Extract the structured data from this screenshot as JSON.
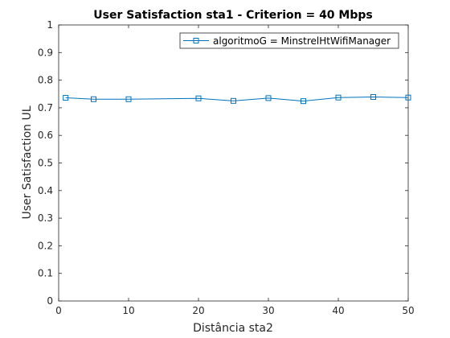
{
  "chart_data": {
    "type": "line",
    "title": "User Satisfaction sta1 -  Criterion = 40 Mbps",
    "xlabel": "Distância sta2",
    "ylabel": "User Satisfaction UL",
    "xlim": [
      0,
      50
    ],
    "ylim": [
      0,
      1
    ],
    "xticks": [
      "0",
      "10",
      "20",
      "30",
      "40",
      "50"
    ],
    "yticks": [
      "0",
      "0.1",
      "0.2",
      "0.3",
      "0.4",
      "0.5",
      "0.6",
      "0.7",
      "0.8",
      "0.9",
      "1"
    ],
    "grid": false,
    "legend_position": "top-right",
    "series": [
      {
        "name": "algoritmoG = MinstrelHtWifiManager",
        "color": "#0072bd",
        "marker": "square",
        "x": [
          1,
          5,
          10,
          20,
          25,
          30,
          35,
          40,
          45,
          50
        ],
        "y": [
          0.736,
          0.731,
          0.731,
          0.734,
          0.725,
          0.735,
          0.724,
          0.737,
          0.739,
          0.737
        ]
      }
    ]
  }
}
